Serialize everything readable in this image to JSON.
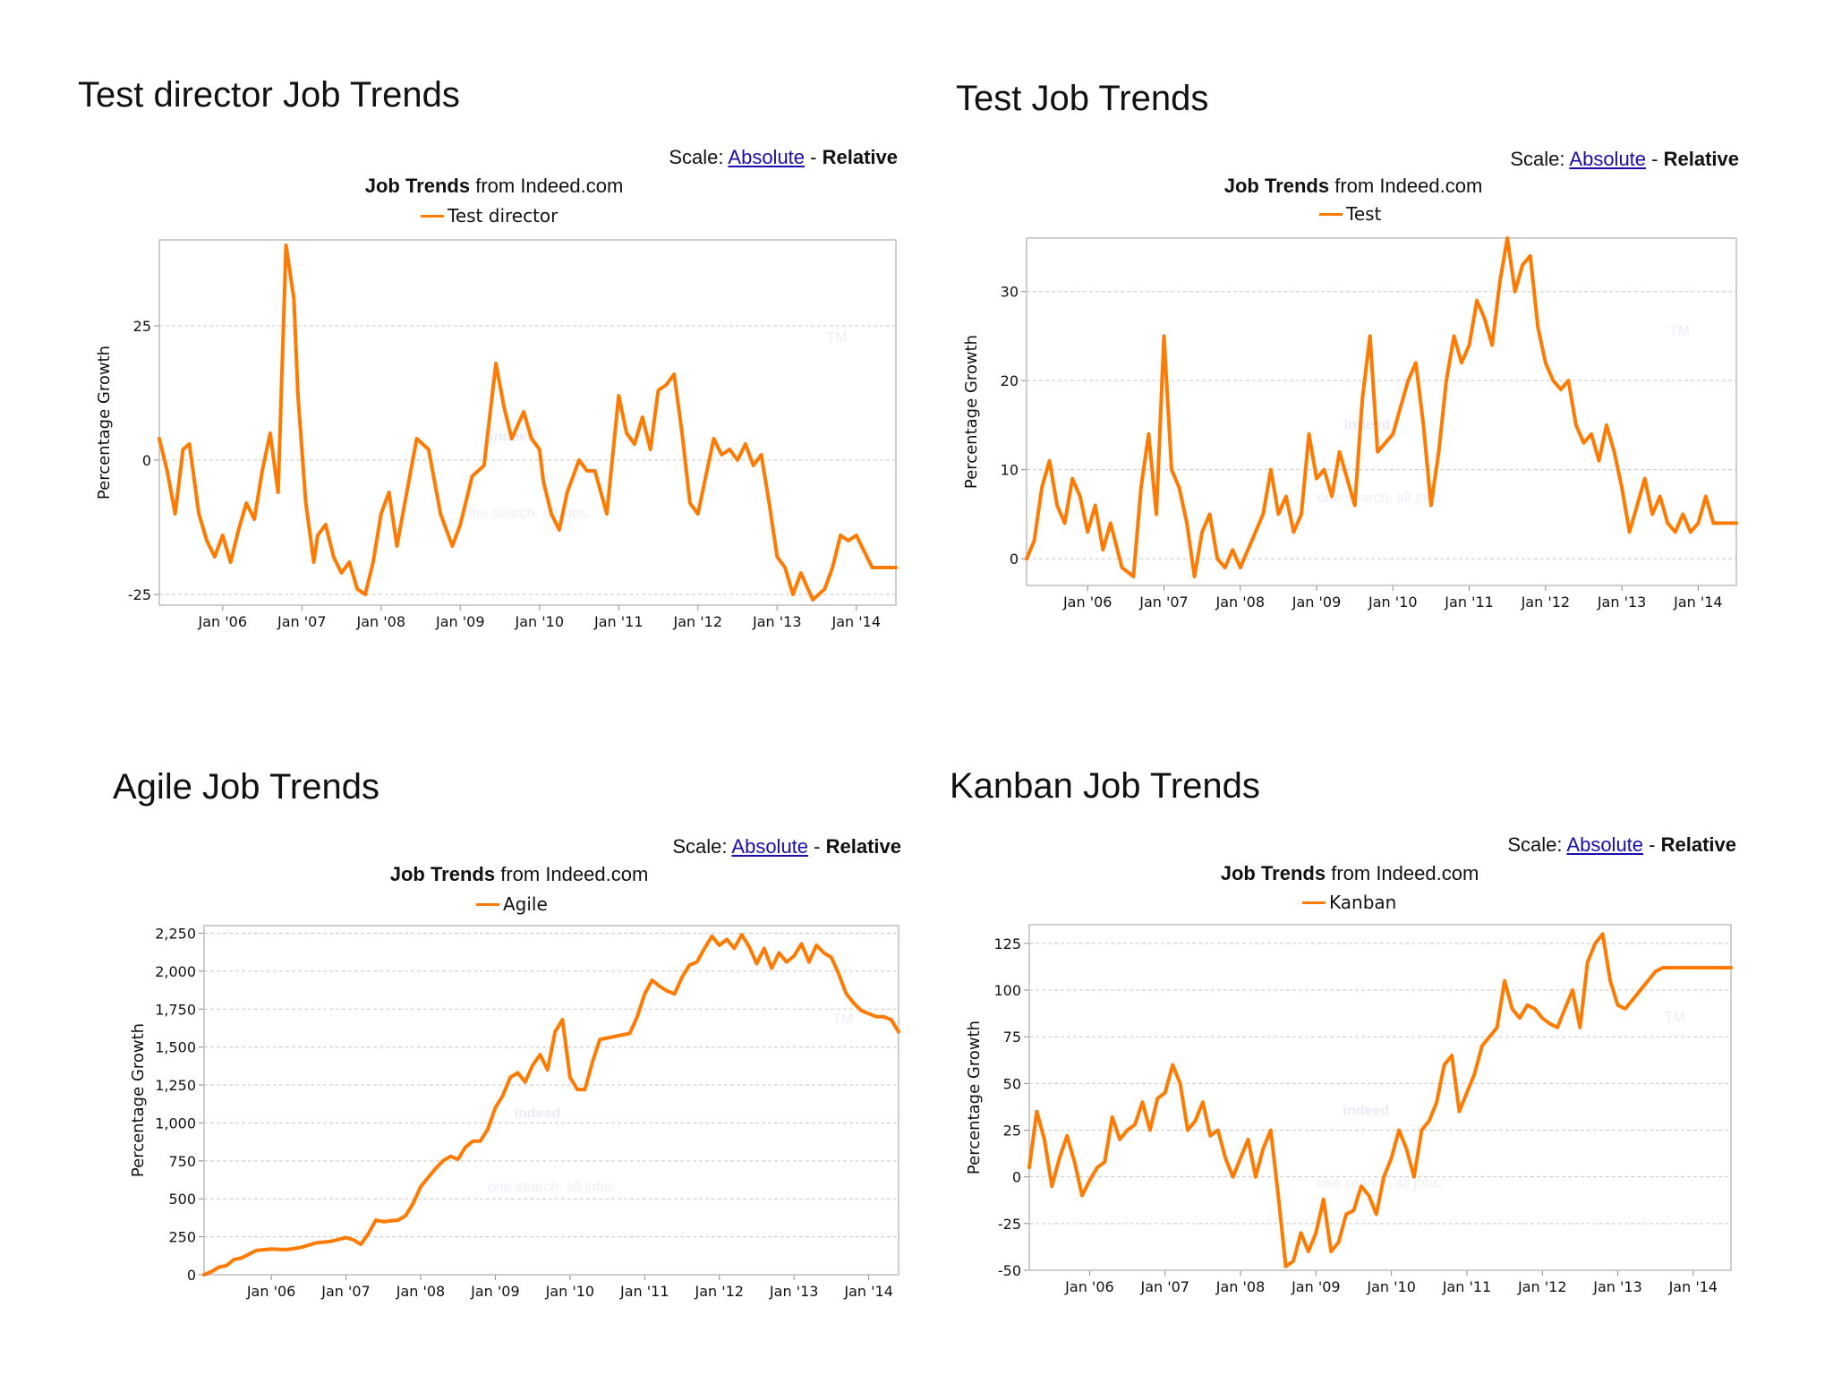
{
  "colors": {
    "line": "#ff7a00",
    "grid": "#c8c8c8",
    "frame": "#bdbdbd",
    "link": "#1a0dab",
    "watermark": "#e9ecf8"
  },
  "common": {
    "scale_prefix": "Scale:",
    "scale_absolute": "Absolute",
    "scale_sep": "-",
    "scale_relative": "Relative",
    "source_bold": "Job Trends",
    "source_rest": "from Indeed.com",
    "watermark_big": "indeed",
    "watermark_small": "one search. all jobs.",
    "watermark_tm": "TM"
  },
  "panels": [
    {
      "title": "Test director Job Trends",
      "legend": "Test director",
      "ylabel": "Percentage Growth"
    },
    {
      "title": "Test Job Trends",
      "legend": "Test",
      "ylabel": "Percentage Growth"
    },
    {
      "title": "Agile Job Trends",
      "legend": "Agile",
      "ylabel": "Percentage Growth"
    },
    {
      "title": "Kanban Job Trends",
      "legend": "Kanban",
      "ylabel": "Percentage Growth"
    }
  ],
  "chart_data": [
    {
      "type": "line",
      "title": "Test director Job Trends",
      "ylabel": "Percentage Growth",
      "xlim": [
        2005.2,
        2014.5
      ],
      "ylim": [
        -27,
        41
      ],
      "yticks": [
        -25,
        0,
        25
      ],
      "ytick_labels": [
        "-25",
        "0",
        "25"
      ],
      "xticks": [
        2006,
        2007,
        2008,
        2009,
        2010,
        2011,
        2012,
        2013,
        2014
      ],
      "xtick_labels": [
        "Jan '06",
        "Jan '07",
        "Jan '08",
        "Jan '09",
        "Jan '10",
        "Jan '11",
        "Jan '12",
        "Jan '13",
        "Jan '14"
      ],
      "grid": true,
      "legend": "top-center",
      "series": [
        {
          "name": "Test director",
          "x": [
            2005.2,
            2005.3,
            2005.4,
            2005.5,
            2005.58,
            2005.7,
            2005.8,
            2005.9,
            2006.0,
            2006.1,
            2006.2,
            2006.3,
            2006.4,
            2006.5,
            2006.6,
            2006.7,
            2006.8,
            2006.9,
            2006.95,
            2007.0,
            2007.05,
            2007.15,
            2007.2,
            2007.3,
            2007.4,
            2007.5,
            2007.6,
            2007.7,
            2007.8,
            2007.9,
            2008.0,
            2008.1,
            2008.2,
            2008.3,
            2008.45,
            2008.6,
            2008.75,
            2008.9,
            2009.0,
            2009.15,
            2009.3,
            2009.45,
            2009.55,
            2009.65,
            2009.8,
            2009.9,
            2010.0,
            2010.05,
            2010.15,
            2010.25,
            2010.35,
            2010.5,
            2010.6,
            2010.7,
            2010.85,
            2011.0,
            2011.1,
            2011.2,
            2011.3,
            2011.4,
            2011.5,
            2011.6,
            2011.7,
            2011.8,
            2011.9,
            2012.0,
            2012.1,
            2012.2,
            2012.3,
            2012.4,
            2012.5,
            2012.6,
            2012.7,
            2012.8,
            2012.9,
            2013.0,
            2013.1,
            2013.2,
            2013.3,
            2013.45,
            2013.6,
            2013.7,
            2013.8,
            2013.9,
            2014.0,
            2014.1,
            2014.2,
            2014.3,
            2014.4,
            2014.5
          ],
          "y": [
            4,
            -2,
            -10,
            2,
            3,
            -10,
            -15,
            -18,
            -14,
            -19,
            -13,
            -8,
            -11,
            -2,
            5,
            -6,
            40,
            30,
            12,
            2,
            -8,
            -19,
            -14,
            -12,
            -18,
            -21,
            -19,
            -24,
            -25,
            -19,
            -10,
            -6,
            -16,
            -8,
            4,
            2,
            -10,
            -16,
            -12,
            -3,
            -1,
            18,
            10,
            4,
            9,
            4,
            2,
            -4,
            -10,
            -13,
            -6,
            0,
            -2,
            -2,
            -10,
            12,
            5,
            3,
            8,
            2,
            13,
            14,
            16,
            5,
            -8,
            -10,
            -3,
            4,
            1,
            2,
            0,
            3,
            -1,
            1,
            -8,
            -18,
            -20,
            -25,
            -21,
            -26,
            -24,
            -20,
            -14,
            -15,
            -14,
            -17,
            -20,
            -20,
            -20,
            -20
          ]
        }
      ]
    },
    {
      "type": "line",
      "title": "Test Job Trends",
      "ylabel": "Percentage Growth",
      "xlim": [
        2005.2,
        2014.5
      ],
      "ylim": [
        -3,
        36
      ],
      "yticks": [
        0,
        10,
        20,
        30
      ],
      "ytick_labels": [
        "0",
        "10",
        "20",
        "30"
      ],
      "xticks": [
        2006,
        2007,
        2008,
        2009,
        2010,
        2011,
        2012,
        2013,
        2014
      ],
      "xtick_labels": [
        "Jan '06",
        "Jan '07",
        "Jan '08",
        "Jan '09",
        "Jan '10",
        "Jan '11",
        "Jan '12",
        "Jan '13",
        "Jan '14"
      ],
      "grid": true,
      "legend": "top-center",
      "series": [
        {
          "name": "Test",
          "x": [
            2005.2,
            2005.3,
            2005.4,
            2005.5,
            2005.6,
            2005.7,
            2005.8,
            2005.9,
            2006.0,
            2006.1,
            2006.2,
            2006.3,
            2006.45,
            2006.6,
            2006.7,
            2006.8,
            2006.9,
            2007.0,
            2007.1,
            2007.2,
            2007.3,
            2007.4,
            2007.5,
            2007.6,
            2007.7,
            2007.8,
            2007.9,
            2008.0,
            2008.1,
            2008.2,
            2008.3,
            2008.4,
            2008.5,
            2008.6,
            2008.7,
            2008.8,
            2008.9,
            2009.0,
            2009.1,
            2009.2,
            2009.3,
            2009.4,
            2009.5,
            2009.6,
            2009.7,
            2009.8,
            2009.9,
            2010.0,
            2010.1,
            2010.2,
            2010.3,
            2010.4,
            2010.5,
            2010.6,
            2010.7,
            2010.8,
            2010.9,
            2011.0,
            2011.1,
            2011.2,
            2011.3,
            2011.4,
            2011.5,
            2011.6,
            2011.7,
            2011.8,
            2011.9,
            2012.0,
            2012.1,
            2012.2,
            2012.3,
            2012.4,
            2012.5,
            2012.6,
            2012.7,
            2012.8,
            2012.9,
            2013.0,
            2013.1,
            2013.2,
            2013.3,
            2013.4,
            2013.5,
            2013.6,
            2013.7,
            2013.8,
            2013.9,
            2014.0,
            2014.1,
            2014.2,
            2014.3,
            2014.4,
            2014.5
          ],
          "y": [
            0,
            2,
            8,
            11,
            6,
            4,
            9,
            7,
            3,
            6,
            1,
            4,
            -1,
            -2,
            8,
            14,
            5,
            25,
            10,
            8,
            4,
            -2,
            3,
            5,
            0,
            -1,
            1,
            -1,
            1,
            3,
            5,
            10,
            5,
            7,
            3,
            5,
            14,
            9,
            10,
            7,
            12,
            9,
            6,
            18,
            25,
            12,
            13,
            14,
            17,
            20,
            22,
            15,
            6,
            12,
            20,
            25,
            22,
            24,
            29,
            27,
            24,
            31,
            36,
            30,
            33,
            34,
            26,
            22,
            20,
            19,
            20,
            15,
            13,
            14,
            11,
            15,
            12,
            8,
            3,
            6,
            9,
            5,
            7,
            4,
            3,
            5,
            3,
            4,
            7,
            4,
            4,
            4,
            4
          ]
        }
      ]
    },
    {
      "type": "line",
      "title": "Agile Job Trends",
      "ylabel": "Percentage Growth",
      "xlim": [
        2005.1,
        2014.4
      ],
      "ylim": [
        0,
        2300
      ],
      "yticks": [
        0,
        250,
        500,
        750,
        1000,
        1250,
        1500,
        1750,
        2000,
        2250
      ],
      "ytick_labels": [
        "0",
        "250",
        "500",
        "750",
        "1,000",
        "1,250",
        "1,500",
        "1,750",
        "2,000",
        "2,250"
      ],
      "xticks": [
        2006,
        2007,
        2008,
        2009,
        2010,
        2011,
        2012,
        2013,
        2014
      ],
      "xtick_labels": [
        "Jan '06",
        "Jan '07",
        "Jan '08",
        "Jan '09",
        "Jan '10",
        "Jan '11",
        "Jan '12",
        "Jan '13",
        "Jan '14"
      ],
      "grid": true,
      "legend": "top-center",
      "series": [
        {
          "name": "Agile",
          "x": [
            2005.1,
            2005.2,
            2005.3,
            2005.4,
            2005.5,
            2005.6,
            2005.8,
            2006.0,
            2006.2,
            2006.4,
            2006.6,
            2006.8,
            2007.0,
            2007.1,
            2007.2,
            2007.3,
            2007.4,
            2007.5,
            2007.6,
            2007.7,
            2007.8,
            2007.9,
            2008.0,
            2008.1,
            2008.2,
            2008.3,
            2008.4,
            2008.5,
            2008.6,
            2008.7,
            2008.8,
            2008.9,
            2009.0,
            2009.1,
            2009.2,
            2009.3,
            2009.4,
            2009.5,
            2009.6,
            2009.7,
            2009.8,
            2009.9,
            2010.0,
            2010.1,
            2010.2,
            2010.3,
            2010.4,
            2010.5,
            2010.6,
            2010.7,
            2010.8,
            2010.9,
            2011.0,
            2011.1,
            2011.2,
            2011.3,
            2011.4,
            2011.5,
            2011.6,
            2011.7,
            2011.8,
            2011.9,
            2012.0,
            2012.1,
            2012.2,
            2012.3,
            2012.4,
            2012.5,
            2012.6,
            2012.7,
            2012.8,
            2012.9,
            2013.0,
            2013.1,
            2013.2,
            2013.3,
            2013.4,
            2013.5,
            2013.6,
            2013.7,
            2013.8,
            2013.9,
            2014.0,
            2014.1,
            2014.2,
            2014.3,
            2014.4
          ],
          "y": [
            0,
            20,
            50,
            60,
            100,
            110,
            160,
            170,
            165,
            180,
            210,
            220,
            245,
            230,
            200,
            270,
            360,
            350,
            355,
            360,
            390,
            470,
            580,
            640,
            700,
            750,
            780,
            760,
            840,
            880,
            880,
            960,
            1100,
            1180,
            1300,
            1330,
            1270,
            1380,
            1450,
            1350,
            1600,
            1680,
            1300,
            1220,
            1220,
            1400,
            1550,
            1560,
            1570,
            1580,
            1590,
            1700,
            1850,
            1940,
            1900,
            1870,
            1850,
            1960,
            2040,
            2060,
            2150,
            2230,
            2170,
            2210,
            2150,
            2240,
            2160,
            2050,
            2150,
            2020,
            2120,
            2060,
            2100,
            2180,
            2060,
            2170,
            2120,
            2090,
            1980,
            1850,
            1790,
            1740,
            1720,
            1700,
            1700,
            1680,
            1600
          ]
        }
      ]
    },
    {
      "type": "line",
      "title": "Kanban Job Trends",
      "ylabel": "Percentage Growth",
      "xlim": [
        2005.2,
        2014.5
      ],
      "ylim": [
        -50,
        135
      ],
      "yticks": [
        -50,
        -25,
        0,
        25,
        50,
        75,
        100,
        125
      ],
      "ytick_labels": [
        "-50",
        "-25",
        "0",
        "25",
        "50",
        "75",
        "100",
        "125"
      ],
      "xticks": [
        2006,
        2007,
        2008,
        2009,
        2010,
        2011,
        2012,
        2013,
        2014
      ],
      "xtick_labels": [
        "Jan '06",
        "Jan '07",
        "Jan '08",
        "Jan '09",
        "Jan '10",
        "Jan '11",
        "Jan '12",
        "Jan '13",
        "Jan '14"
      ],
      "grid": true,
      "legend": "top-center",
      "series": [
        {
          "name": "Kanban",
          "x": [
            2005.2,
            2005.3,
            2005.4,
            2005.5,
            2005.6,
            2005.7,
            2005.8,
            2005.9,
            2006.0,
            2006.1,
            2006.2,
            2006.3,
            2006.4,
            2006.5,
            2006.6,
            2006.7,
            2006.8,
            2006.9,
            2007.0,
            2007.1,
            2007.2,
            2007.3,
            2007.4,
            2007.5,
            2007.6,
            2007.7,
            2007.8,
            2007.9,
            2008.0,
            2008.1,
            2008.2,
            2008.3,
            2008.4,
            2008.5,
            2008.6,
            2008.7,
            2008.8,
            2008.9,
            2009.0,
            2009.1,
            2009.2,
            2009.3,
            2009.4,
            2009.5,
            2009.6,
            2009.7,
            2009.8,
            2009.9,
            2010.0,
            2010.1,
            2010.2,
            2010.3,
            2010.4,
            2010.5,
            2010.6,
            2010.7,
            2010.8,
            2010.9,
            2011.0,
            2011.1,
            2011.2,
            2011.3,
            2011.4,
            2011.5,
            2011.6,
            2011.7,
            2011.8,
            2011.9,
            2012.0,
            2012.1,
            2012.2,
            2012.3,
            2012.4,
            2012.5,
            2012.6,
            2012.7,
            2012.8,
            2012.9,
            2013.0,
            2013.1,
            2013.2,
            2013.3,
            2013.4,
            2013.5,
            2013.6,
            2013.7,
            2013.8,
            2013.9,
            2014.0,
            2014.1,
            2014.2,
            2014.3,
            2014.4,
            2014.5
          ],
          "y": [
            5,
            35,
            20,
            -5,
            10,
            22,
            8,
            -10,
            -2,
            5,
            8,
            32,
            20,
            25,
            28,
            40,
            25,
            42,
            45,
            60,
            50,
            25,
            30,
            40,
            22,
            25,
            10,
            0,
            10,
            20,
            0,
            15,
            25,
            -10,
            -48,
            -45,
            -30,
            -40,
            -30,
            -12,
            -40,
            -35,
            -20,
            -18,
            -5,
            -10,
            -20,
            0,
            10,
            25,
            15,
            0,
            25,
            30,
            40,
            60,
            65,
            35,
            45,
            55,
            70,
            75,
            80,
            105,
            90,
            85,
            92,
            90,
            85,
            82,
            80,
            90,
            100,
            80,
            115,
            125,
            130,
            105,
            92,
            90,
            95,
            100,
            105,
            110,
            112,
            112,
            112,
            112,
            112,
            112,
            112,
            112,
            112,
            112
          ]
        }
      ]
    }
  ]
}
